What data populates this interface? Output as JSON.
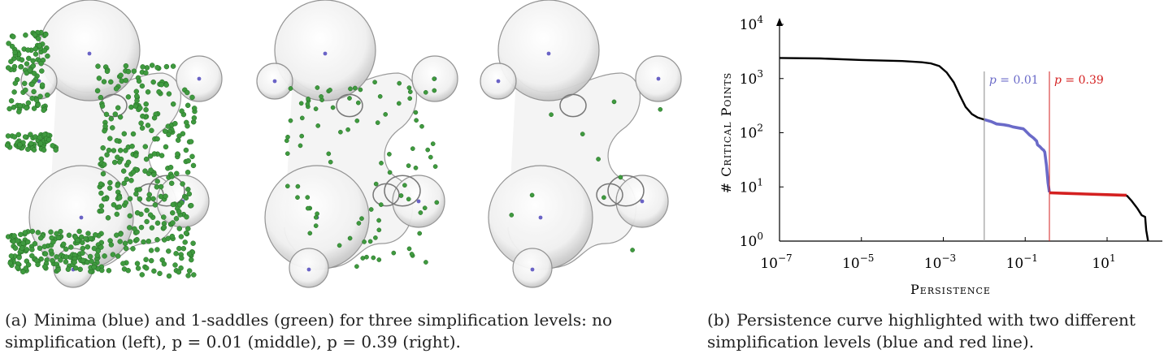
{
  "figure_a": {
    "caption_label": "(a)",
    "caption_text": "Minima (blue) and 1-saddles (green) for three simplification levels: no simplification (left), p = 0.01 (middle), p = 0.39 (right).",
    "colors": {
      "minima": "#6a63c6",
      "saddles": "#3f9a3f",
      "surface": "#c9c9c9"
    },
    "views": [
      "no simplification",
      "p = 0.01",
      "p = 0.39"
    ]
  },
  "figure_b": {
    "caption_label": "(b)",
    "caption_text": "Persistence curve highlighted with two different simplification levels (blue and red line).",
    "chart_data": {
      "type": "line",
      "title": "",
      "xlabel": "Persistence",
      "ylabel": "# Critical Points",
      "x_scale": "log",
      "y_scale": "log",
      "xlim": [
        1e-07,
        100
      ],
      "ylim": [
        1,
        10000
      ],
      "x_ticks": [
        {
          "value": 1e-07,
          "mantissa": "10",
          "exp": "−7"
        },
        {
          "value": 1e-05,
          "mantissa": "10",
          "exp": "−5"
        },
        {
          "value": 0.001,
          "mantissa": "10",
          "exp": "−3"
        },
        {
          "value": 0.1,
          "mantissa": "10",
          "exp": "−1"
        },
        {
          "value": 10,
          "mantissa": "10",
          "exp": "1"
        }
      ],
      "y_ticks": [
        {
          "value": 1,
          "mantissa": "10",
          "exp": "0"
        },
        {
          "value": 10,
          "mantissa": "10",
          "exp": "1"
        },
        {
          "value": 100,
          "mantissa": "10",
          "exp": "2"
        },
        {
          "value": 1000,
          "mantissa": "10",
          "exp": "3"
        },
        {
          "value": 10000,
          "mantissa": "10",
          "exp": "4"
        }
      ],
      "series": [
        {
          "color": "#000000",
          "x": [
            1e-07,
            1e-06,
            1e-05,
            0.0001,
            0.0003,
            0.0005,
            0.0008,
            0.0012,
            0.0018,
            0.0025,
            0.0035,
            0.005,
            0.007,
            0.01
          ],
          "y": [
            2400,
            2350,
            2200,
            2100,
            2000,
            1900,
            1700,
            1300,
            850,
            500,
            300,
            220,
            190,
            175
          ]
        },
        {
          "color": "#6a6ac8",
          "x": [
            0.01,
            0.015,
            0.02,
            0.03,
            0.04,
            0.05,
            0.07,
            0.09,
            0.1,
            0.13,
            0.16,
            0.19,
            0.2,
            0.23,
            0.26,
            0.28,
            0.3,
            0.33,
            0.36,
            0.39
          ],
          "y": [
            175,
            160,
            145,
            140,
            135,
            128,
            122,
            118,
            110,
            90,
            80,
            70,
            60,
            55,
            50,
            48,
            44,
            25,
            12,
            8
          ]
        },
        {
          "color": "#d42020",
          "x": [
            0.39,
            1,
            3,
            10,
            30
          ],
          "y": [
            7.8,
            7.6,
            7.4,
            7.2,
            7.0
          ]
        },
        {
          "color": "#000000",
          "x": [
            30,
            40,
            55,
            70,
            85,
            90,
            100
          ],
          "y": [
            7.0,
            5.5,
            4.0,
            3.0,
            2.8,
            1.6,
            1.0
          ]
        }
      ],
      "markers": [
        {
          "x": 0.01,
          "label_var": "p",
          "label_value": "= 0.01",
          "color": "#6a6ac8",
          "line_color": "#888888"
        },
        {
          "x": 0.39,
          "label_var": "p",
          "label_value": "= 0.39",
          "color": "#d42020",
          "line_color": "#d42020"
        }
      ]
    }
  }
}
